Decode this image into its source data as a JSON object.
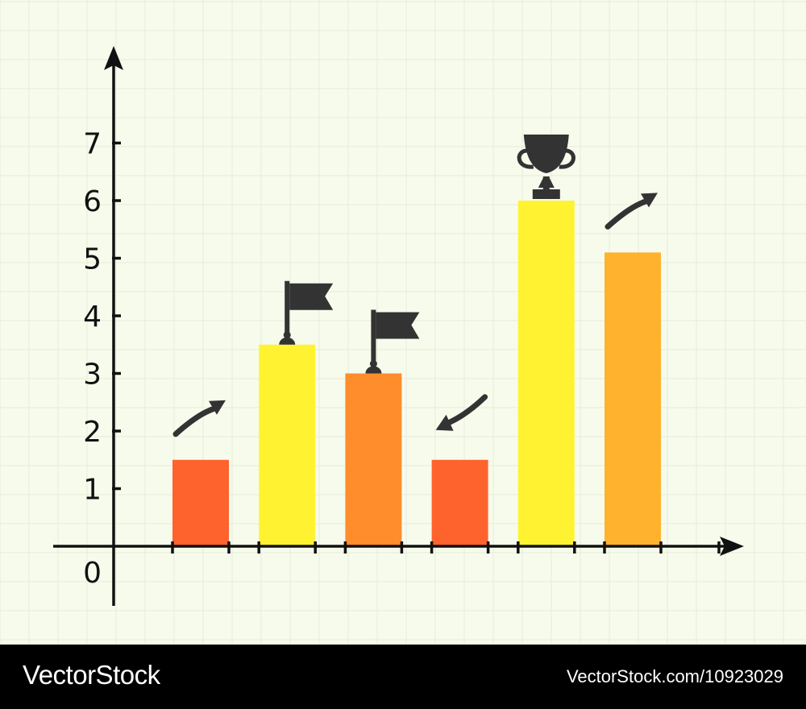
{
  "chart_data": {
    "type": "bar",
    "categories": [
      "",
      "",
      "",
      "",
      "",
      ""
    ],
    "values": [
      1.5,
      3.5,
      3.0,
      1.5,
      6.0,
      5.1
    ],
    "colors": [
      "#ff632d",
      "#fff331",
      "#ff8d2c",
      "#ff632d",
      "#fff331",
      "#ffb22e"
    ],
    "ylim": [
      0,
      7
    ],
    "yticks": [
      "0",
      "1",
      "2",
      "3",
      "4",
      "5",
      "6",
      "7"
    ],
    "title": "",
    "xlabel": "",
    "ylabel": "",
    "grid": true,
    "background": "#f7fbec",
    "markers": [
      {
        "bar": 0,
        "icon": "arrow-up-right-icon"
      },
      {
        "bar": 1,
        "icon": "flag-icon"
      },
      {
        "bar": 2,
        "icon": "flag-icon"
      },
      {
        "bar": 3,
        "icon": "arrow-down-left-icon"
      },
      {
        "bar": 4,
        "icon": "trophy-icon"
      },
      {
        "bar": 5,
        "icon": "arrow-up-right-icon"
      }
    ]
  },
  "watermark": {
    "brand": "VectorStock",
    "trademark": "®",
    "url": "VectorStock.com/10923029"
  }
}
